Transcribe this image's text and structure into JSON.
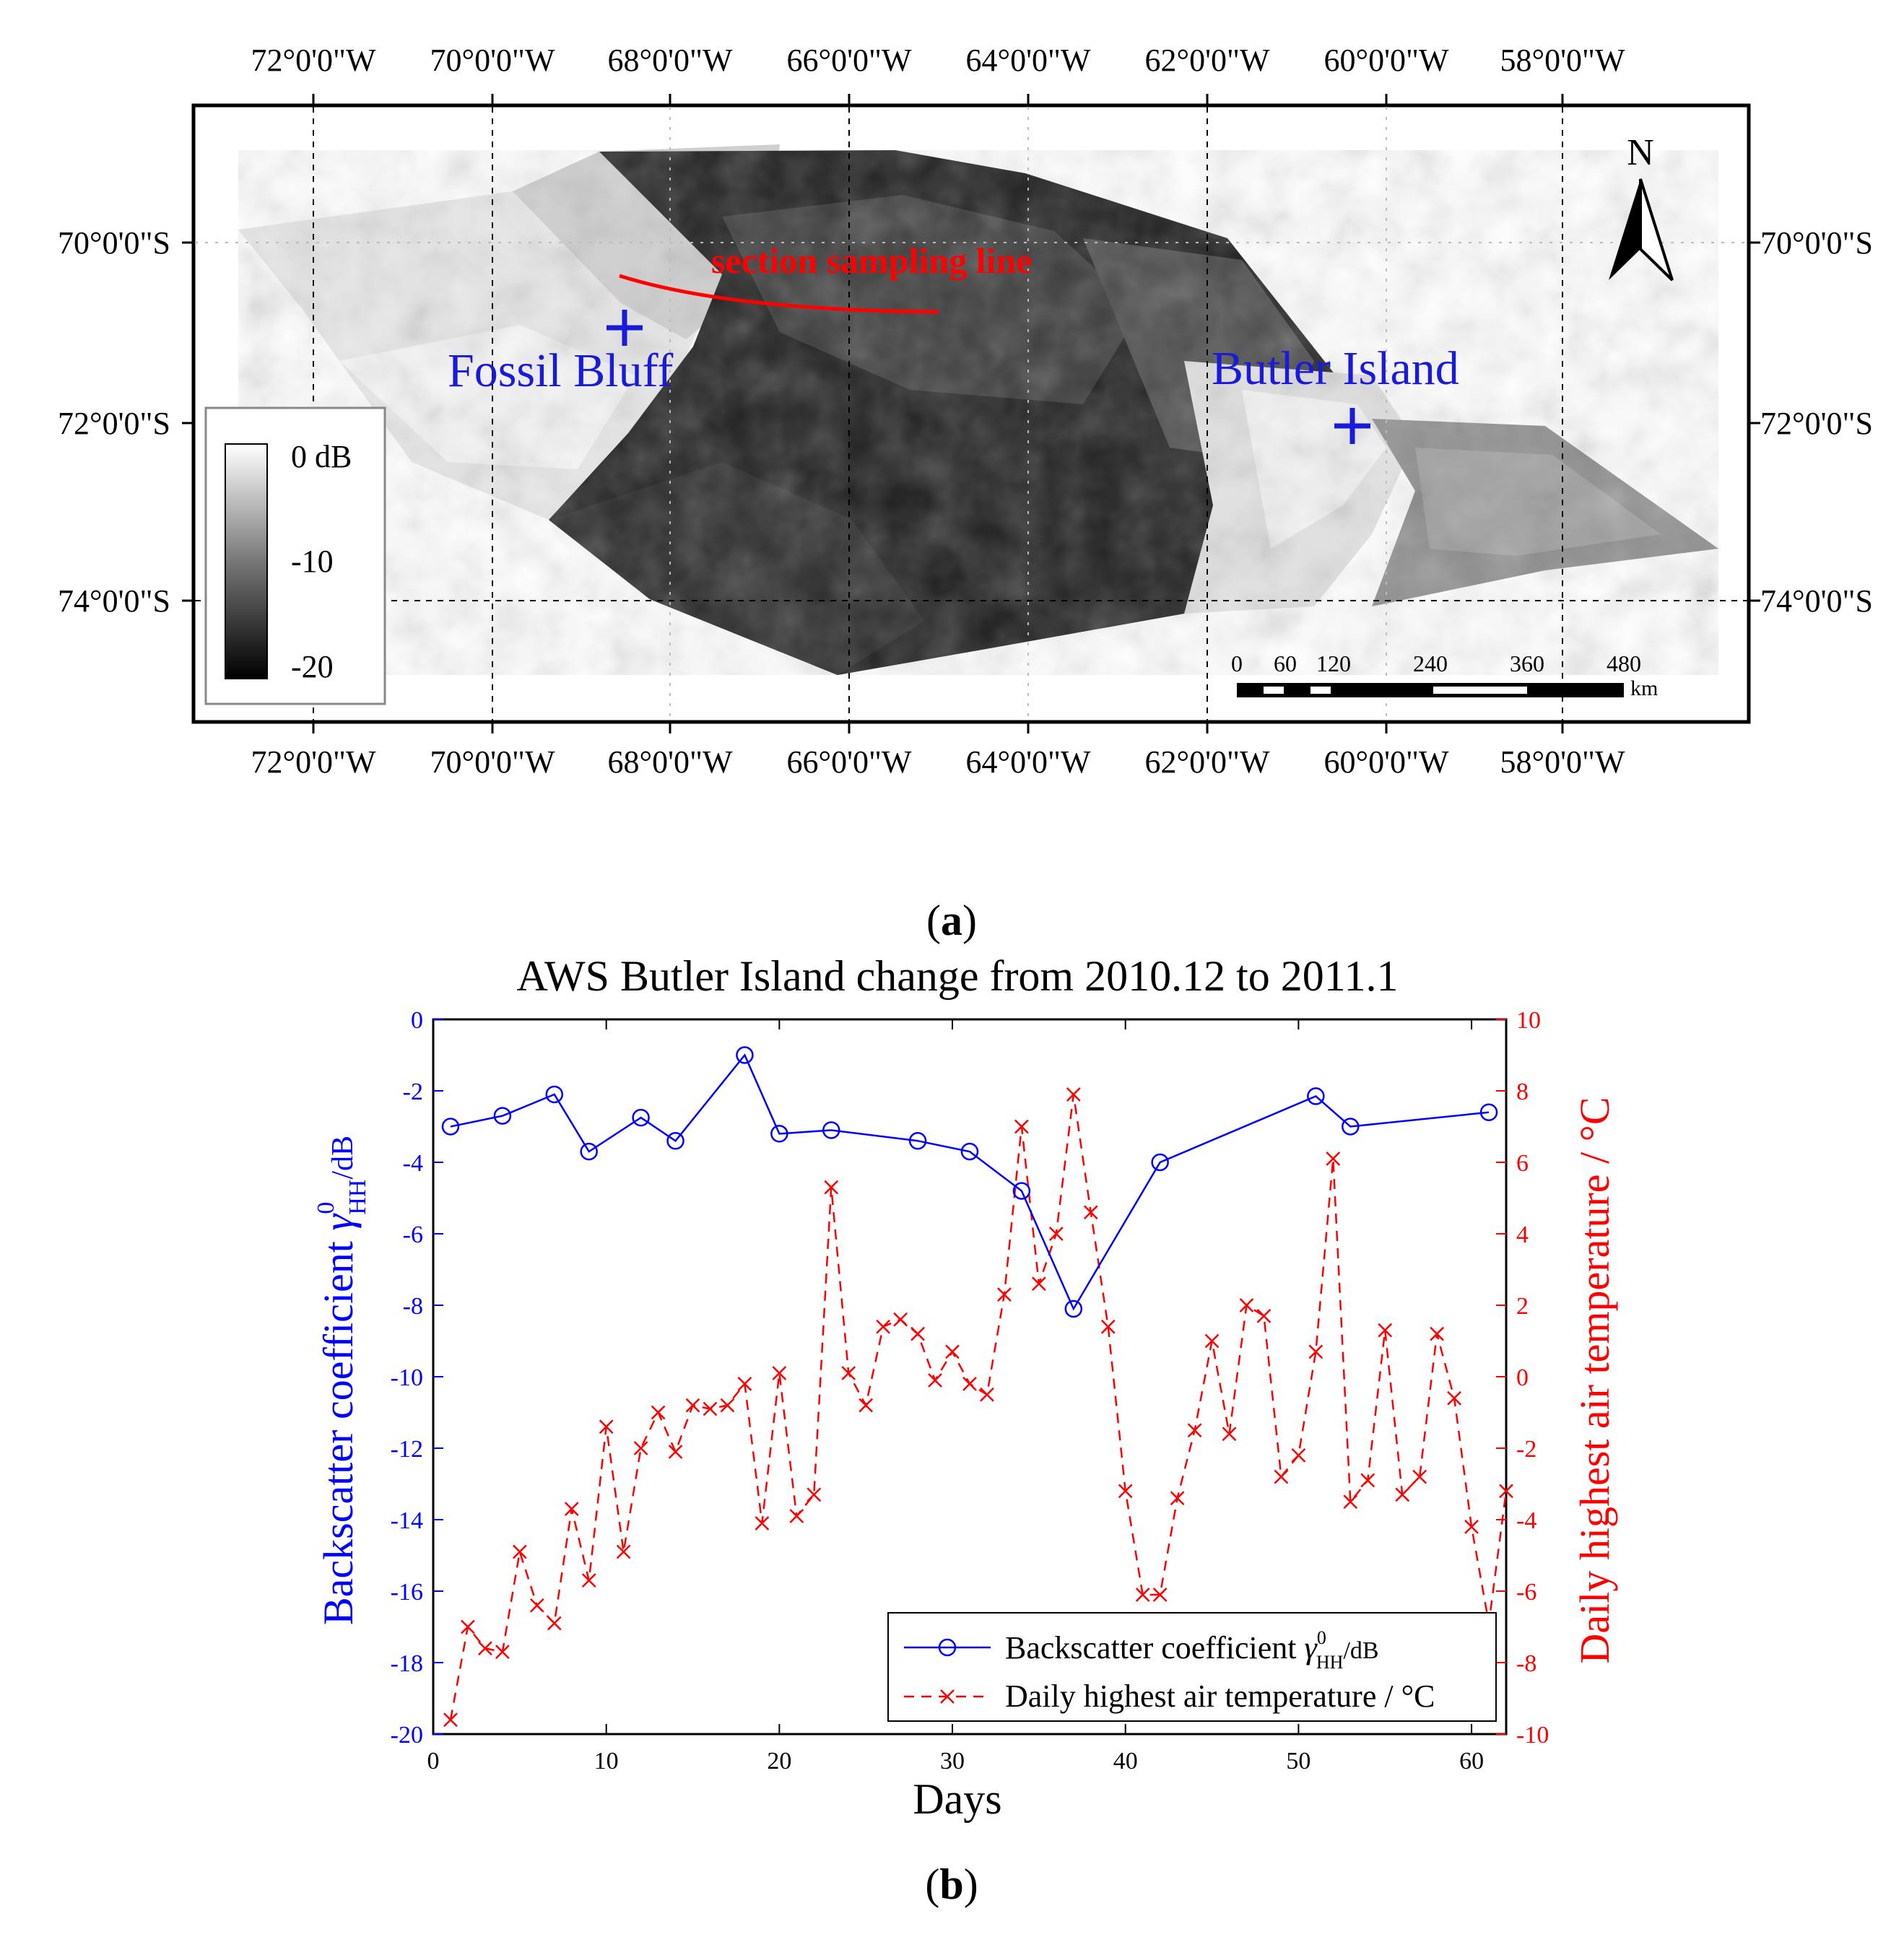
{
  "panel_a": {
    "label_open": "(",
    "label_letter": "a",
    "label_close": ")",
    "top_lon_labels": [
      "72°0'0\"W",
      "70°0'0\"W",
      "68°0'0\"W",
      "66°0'0\"W",
      "64°0'0\"W",
      "62°0'0\"W",
      "60°0'0\"W",
      "58°0'0\"W"
    ],
    "bottom_lon_labels": [
      "72°0'0\"W",
      "70°0'0\"W",
      "68°0'0\"W",
      "66°0'0\"W",
      "64°0'0\"W",
      "62°0'0\"W",
      "60°0'0\"W",
      "58°0'0\"W"
    ],
    "left_lat_labels": [
      "70°0'0\"S",
      "72°0'0\"S",
      "74°0'0\"S"
    ],
    "right_lat_labels": [
      "70°0'0\"S",
      "72°0'0\"S",
      "74°0'0\"S"
    ],
    "north_label": "N",
    "section_label": "section sampling line",
    "section_color": "#ff0000",
    "station_color": "#1a1adb",
    "stations": [
      {
        "name": "Fossil Bluff",
        "lon": -68.6,
        "lat": -70.9
      },
      {
        "name": "Butler Island",
        "lon": -60.2,
        "lat": -72.0
      }
    ],
    "colorbar": {
      "top_label": "0 dB",
      "mid_label": "-10",
      "bottom_label": "-20"
    },
    "scale_bar": {
      "ticks": [
        "0",
        "60",
        "120",
        "240",
        "360",
        "480"
      ],
      "unit": "km"
    }
  },
  "panel_b": {
    "label_open": "(",
    "label_letter": "b",
    "label_close": ")"
  },
  "chart_data": {
    "type": "line",
    "title": "AWS Butler Island change from 2010.12 to 2011.1",
    "xlabel": "Days",
    "ylabel_left_main": "Backscatter coefficient ",
    "ylabel_left_sym": "γ",
    "ylabel_left_sup": "0",
    "ylabel_left_sub": "HH",
    "ylabel_left_unit": "/dB",
    "ylabel_right": "Daily highest air temperature / °C",
    "xlim": [
      0,
      62
    ],
    "ylim_left": [
      -20,
      0
    ],
    "ylim_right": [
      -10,
      10
    ],
    "x_ticks": [
      "0",
      "10",
      "20",
      "30",
      "40",
      "50",
      "60"
    ],
    "y_left_ticks": [
      "0",
      "-2",
      "-4",
      "-6",
      "-8",
      "-10",
      "-12",
      "-14",
      "-16",
      "-18",
      "-20"
    ],
    "y_right_ticks": [
      "10",
      "8",
      "6",
      "4",
      "2",
      "0",
      "-2",
      "-4",
      "-6",
      "-8",
      "-10"
    ],
    "grid": false,
    "legend_position": "bottom-right",
    "series": [
      {
        "name_main": "Backscatter coefficient ",
        "name_sym": "γ",
        "name_sup": "0",
        "name_sub": "HH",
        "name_unit": "/dB",
        "axis": "left",
        "color": "#0000ff",
        "marker": "circle",
        "x": [
          1,
          4,
          7,
          9,
          12,
          14,
          18,
          20,
          23,
          28,
          31,
          34,
          37,
          42,
          51,
          53,
          61
        ],
        "y": [
          -3.0,
          -2.7,
          -2.1,
          -3.7,
          -2.75,
          -3.4,
          -1.0,
          -3.2,
          -3.1,
          -3.4,
          -3.7,
          -4.8,
          -8.1,
          -4.0,
          -2.15,
          -3.0,
          -2.6
        ]
      },
      {
        "name": "Daily highest air temperature / °C",
        "axis": "right",
        "color": "#ff0000",
        "marker": "x",
        "dash": true,
        "x": [
          1,
          2,
          3,
          4,
          5,
          6,
          7,
          8,
          9,
          10,
          11,
          12,
          13,
          14,
          15,
          16,
          17,
          18,
          19,
          20,
          21,
          22,
          23,
          24,
          25,
          26,
          27,
          28,
          29,
          30,
          31,
          32,
          33,
          34,
          35,
          36,
          37,
          38,
          39,
          40,
          41,
          42,
          43,
          44,
          45,
          46,
          47,
          48,
          49,
          50,
          51,
          52,
          53,
          54,
          55,
          56,
          57,
          58,
          59,
          60,
          61,
          62
        ],
        "y": [
          -9.6,
          -7.0,
          -7.6,
          -7.7,
          -4.9,
          -6.4,
          -6.9,
          -3.7,
          -5.7,
          -1.4,
          -4.9,
          -2.0,
          -1.0,
          -2.1,
          -0.8,
          -0.9,
          -0.8,
          -0.2,
          -4.1,
          0.1,
          -3.9,
          -3.3,
          5.3,
          0.1,
          -0.8,
          1.4,
          1.6,
          1.2,
          -0.1,
          0.7,
          -0.2,
          -0.5,
          2.3,
          7.0,
          2.6,
          4.0,
          7.9,
          4.6,
          1.4,
          -3.2,
          -6.1,
          -6.1,
          -3.4,
          -1.5,
          1.0,
          -1.6,
          2.0,
          1.7,
          -2.8,
          -2.2,
          0.7,
          6.1,
          -3.5,
          -2.9,
          1.3,
          -3.3,
          -2.8,
          1.2,
          -0.6,
          -4.2,
          -6.9,
          -3.2
        ]
      }
    ]
  }
}
